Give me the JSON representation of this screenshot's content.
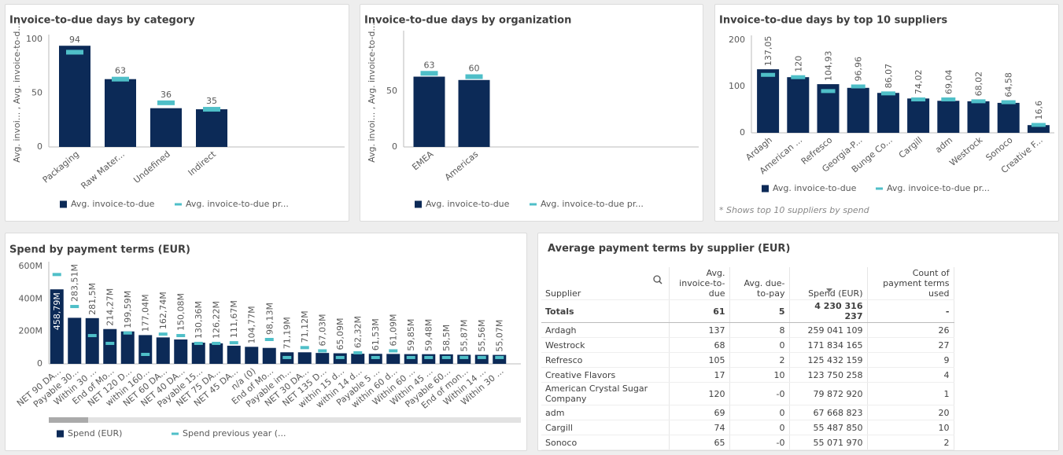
{
  "chart_data": [
    {
      "type": "bar",
      "title": "Invoice-to-due days by category",
      "y_label": "Avg. invoi... , Avg. invoice-to-d...",
      "categories": [
        "Packaging",
        "Raw Mater...",
        "Undefined",
        "Indirect"
      ],
      "series": [
        {
          "name": "Avg. invoice-to-due",
          "color": "#0c2a57",
          "kind": "bar",
          "values": [
            94,
            63,
            36,
            35
          ]
        },
        {
          "name": "Avg. invoice-to-due pr...",
          "color": "#4fbfc8",
          "kind": "marker",
          "values": [
            88,
            63,
            41,
            35
          ]
        }
      ],
      "ylim": [
        0,
        100
      ],
      "yticks": [
        0,
        50,
        100
      ],
      "grid": false,
      "legend": "bottom"
    },
    {
      "type": "bar",
      "title": "Invoice-to-due days by organization",
      "y_label": "Avg. invoi... , Avg. invoice-to-d...",
      "categories": [
        "EMEA",
        "Americas"
      ],
      "series": [
        {
          "name": "Avg. invoice-to-due",
          "color": "#0c2a57",
          "kind": "bar",
          "values": [
            63,
            60
          ]
        },
        {
          "name": "Avg. invoice-to-due pr...",
          "color": "#4fbfc8",
          "kind": "marker",
          "values": [
            66,
            63
          ]
        }
      ],
      "ylim": [
        0,
        100
      ],
      "yticks": [
        0,
        50
      ],
      "grid": false,
      "legend": "bottom"
    },
    {
      "type": "bar",
      "title": "Invoice-to-due days by top 10 suppliers",
      "footnote": "* Shows top 10 suppliers by spend",
      "categories": [
        "Ardagh",
        "American ...",
        "Refresco",
        "Georgia-P...",
        "Bunge Co...",
        "Cargill",
        "adm",
        "Westrock",
        "Sonoco",
        "Creative F..."
      ],
      "series": [
        {
          "name": "Avg. invoice-to-due",
          "color": "#0c2a57",
          "kind": "bar",
          "values": [
            137.05,
            120,
            104.93,
            96.96,
            86.07,
            74.02,
            69.04,
            68.02,
            64.58,
            16.6
          ],
          "value_labels": [
            "137,05",
            "120",
            "104,93",
            "96,96",
            "86,07",
            "74,02",
            "69,04",
            "68,02",
            "64,58",
            "16,6"
          ]
        },
        {
          "name": "Avg. invoice-to-due pr...",
          "color": "#4fbfc8",
          "kind": "marker",
          "values": [
            125,
            120,
            90,
            100,
            85,
            72,
            72,
            68,
            66,
            17
          ]
        }
      ],
      "ylim": [
        0,
        200
      ],
      "yticks": [
        0,
        100,
        200
      ],
      "grid": false,
      "legend": "bottom"
    },
    {
      "type": "bar",
      "title": "Spend by payment terms (EUR)",
      "categories": [
        "NET 90 DA...",
        "Payable 30...",
        "Within 30 ...",
        "End of Mo...",
        "NET 120 D...",
        "within 160...",
        "NET 60 DA...",
        "NET 40 DA...",
        "Payable 15...",
        "NET 75 DA...",
        "NET 45 DA...",
        "n/a (0)",
        "End of Mo...",
        "Payable im...",
        "NET 30 DA...",
        "NET 135 D...",
        "within 15 d...",
        "within 14 d...",
        "Payable 5 ...",
        "within 60 d...",
        "Within 60 ...",
        "Within 45 ...",
        "Payable 60...",
        "End of mon...",
        "Within 14 ...",
        "Within 30 ..."
      ],
      "series": [
        {
          "name": "Spend (EUR)",
          "color": "#0c2a57",
          "kind": "bar",
          "values": [
            458.79,
            283.51,
            281.5,
            214.27,
            199.59,
            177.04,
            162.74,
            150.08,
            130.36,
            126.22,
            111.67,
            104.77,
            98.13,
            71.19,
            71.12,
            67.03,
            65.09,
            62.32,
            61.53,
            61.09,
            59.85,
            59.48,
            58.5,
            55.87,
            55.56,
            55.07
          ],
          "value_labels": [
            "458,79M",
            "283,51M",
            "281,5M",
            "214,27M",
            "199,59M",
            "177,04M",
            "162,74M",
            "150,08M",
            "130,36M",
            "126,22M",
            "111,67M",
            "104,77M",
            "98,13M",
            "71,19M",
            "71,12M",
            "67,03M",
            "65,09M",
            "62,32M",
            "61,53M",
            "61,09M",
            "59,85M",
            "59,48M",
            "58,5M",
            "55,87M",
            "55,56M",
            "55,07M"
          ]
        },
        {
          "name": "Spend previous year (...",
          "color": "#4fbfc8",
          "kind": "marker",
          "values": [
            550,
            353,
            174,
            126,
            190,
            58,
            183,
            174,
            126,
            126,
            130,
            null,
            150,
            39,
            100,
            80,
            39,
            68,
            39,
            80,
            39,
            39,
            39,
            39,
            39,
            39
          ]
        }
      ],
      "ylim": [
        0,
        600
      ],
      "yticks": [
        {
          "value": 0,
          "label": "0"
        },
        {
          "value": 200,
          "label": "200M"
        },
        {
          "value": 400,
          "label": "400M"
        },
        {
          "value": 600,
          "label": "600M"
        }
      ],
      "grid": false,
      "legend": "bottom"
    }
  ],
  "table": {
    "title": "Average payment terms by supplier (EUR)",
    "columns": [
      "Supplier",
      "Avg. invoice-to-due",
      "Avg. due-to-pay",
      "Spend (EUR)",
      "Count of payment terms used"
    ],
    "totals": [
      "Totals",
      "61",
      "5",
      "4 230 316 237",
      "-"
    ],
    "rows": [
      [
        "Ardagh",
        "137",
        "8",
        "259 041 109",
        "26"
      ],
      [
        "Westrock",
        "68",
        "0",
        "171 834 165",
        "27"
      ],
      [
        "Refresco",
        "105",
        "2",
        "125 432 159",
        "9"
      ],
      [
        "Creative Flavors",
        "17",
        "10",
        "123 750 258",
        "4"
      ],
      [
        "American Crystal Sugar Company",
        "120",
        "-0",
        "79 872 920",
        "1"
      ],
      [
        "adm",
        "69",
        "0",
        "67 668 823",
        "20"
      ],
      [
        "Cargill",
        "74",
        "0",
        "55 487 850",
        "10"
      ],
      [
        "Sonoco",
        "65",
        "-0",
        "55 071 970",
        "2"
      ]
    ]
  }
}
